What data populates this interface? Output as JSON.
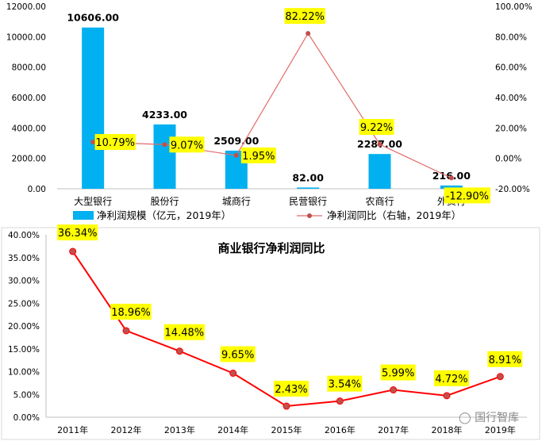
{
  "chart_data": [
    {
      "type": "bar+line",
      "categories": [
        "大型银行",
        "股份行",
        "城商行",
        "民营银行",
        "农商行",
        "外资行"
      ],
      "series": [
        {
          "name": "净利润规模（亿元，2019年）",
          "type": "bar",
          "axis": "left",
          "values": [
            10606.0,
            4233.0,
            2509.0,
            82.0,
            2287.0,
            216.0
          ],
          "labels": [
            "10606.00",
            "4233.00",
            "2509.00",
            "82.00",
            "2287.00",
            "216.00"
          ]
        },
        {
          "name": "净利润同比（右轴，2019年）",
          "type": "line",
          "axis": "right",
          "values": [
            10.79,
            9.07,
            1.95,
            82.22,
            9.22,
            -12.9
          ],
          "labels": [
            "10.79%",
            "9.07%",
            "1.95%",
            "82.22%",
            "9.22%",
            "-12.90%"
          ]
        }
      ],
      "left_axis": {
        "ylim": [
          0,
          12000
        ],
        "ticks": [
          "0.00",
          "2000.00",
          "4000.00",
          "6000.00",
          "8000.00",
          "10000.00",
          "12000.00"
        ]
      },
      "right_axis": {
        "ylim": [
          -20,
          100
        ],
        "ticks": [
          "-20.00%",
          "0.00%",
          "20.00%",
          "40.00%",
          "60.00%",
          "80.00%",
          "100.00%"
        ]
      },
      "legend": "bottom",
      "colors": {
        "bar": "#00b0f0",
        "line": "#e26b6b",
        "marker": "#c0504d",
        "label_bg": "#ffff00"
      }
    },
    {
      "type": "line",
      "title": "商业银行净利润同比",
      "categories": [
        "2011年",
        "2012年",
        "2013年",
        "2014年",
        "2015年",
        "2016年",
        "2017年",
        "2018年",
        "2019年"
      ],
      "values": [
        36.34,
        18.96,
        14.48,
        9.65,
        2.43,
        3.54,
        5.99,
        4.72,
        8.91
      ],
      "labels": [
        "36.34%",
        "18.96%",
        "14.48%",
        "9.65%",
        "2.43%",
        "3.54%",
        "5.99%",
        "4.72%",
        "8.91%"
      ],
      "ylim": [
        0,
        40
      ],
      "ticks": [
        "0.00%",
        "5.00%",
        "10.00%",
        "15.00%",
        "20.00%",
        "25.00%",
        "30.00%",
        "35.00%",
        "40.00%"
      ],
      "grid": false,
      "colors": {
        "line": "#ff0000",
        "marker": "#c0504d",
        "label_bg": "#ffff00"
      }
    }
  ],
  "watermark": "国行智库"
}
